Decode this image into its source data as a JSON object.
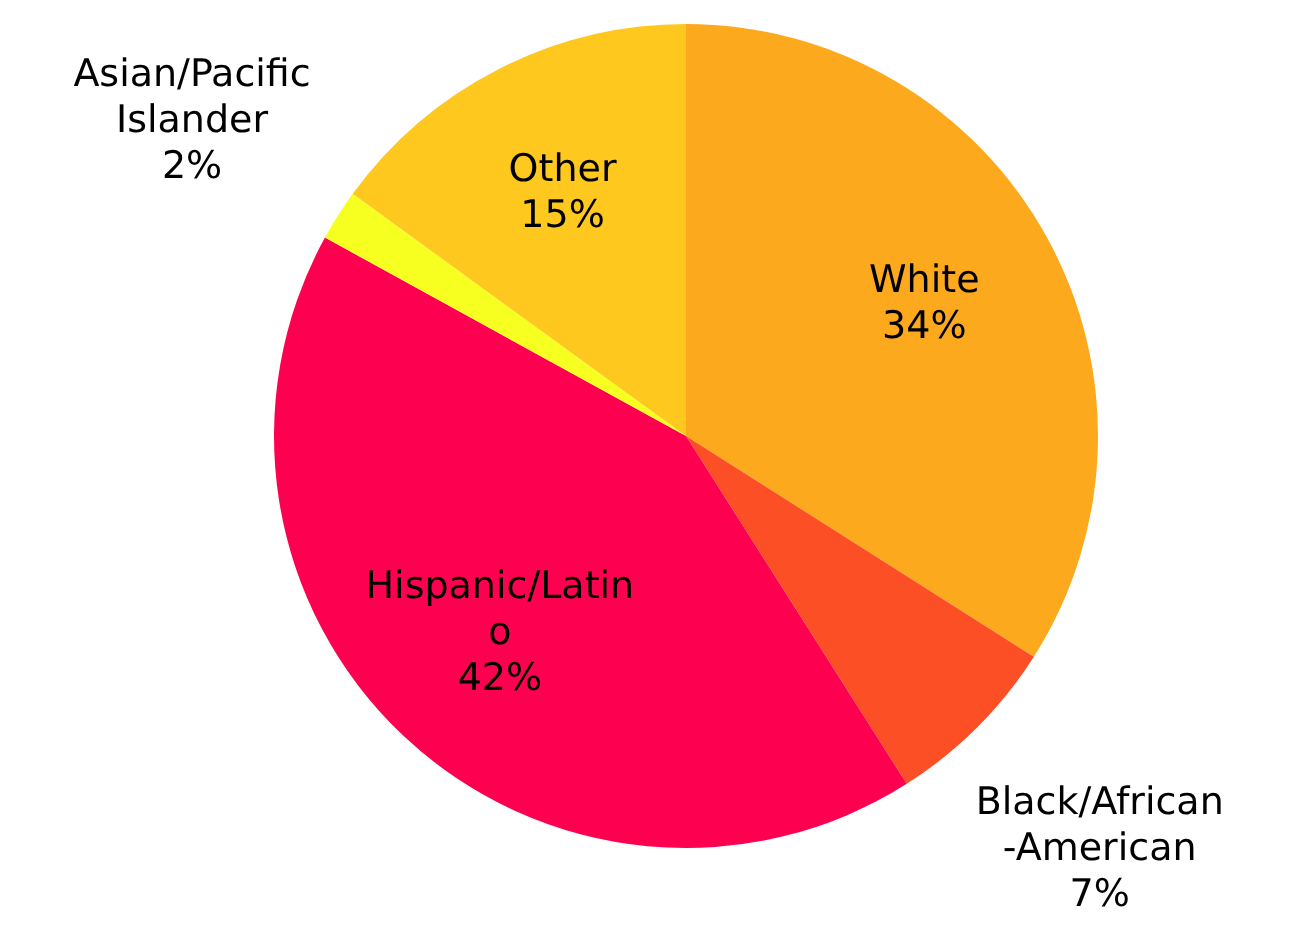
{
  "chart_data": {
    "type": "pie",
    "categories": [
      "White",
      "Black/African-American",
      "Hispanic/Latino",
      "Asian/Pacific Islander",
      "Other"
    ],
    "values": [
      34,
      7,
      42,
      2,
      15
    ],
    "value_labels": [
      "34%",
      "7%",
      "42%",
      "2%",
      "15%"
    ],
    "colors": [
      "#fca91e",
      "#fd4f26",
      "#fe0050",
      "#f6ff1f",
      "#fec81e"
    ],
    "legend": false
  }
}
